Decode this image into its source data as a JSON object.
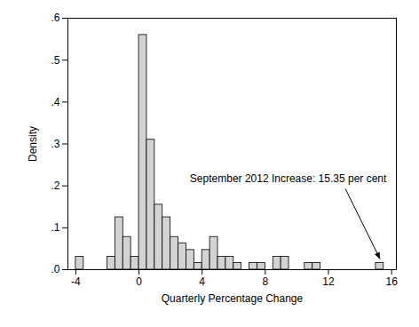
{
  "chart_data": {
    "type": "histogram",
    "x_label": "Quarterly Percentage Change",
    "y_label": "Density",
    "bins": [
      -4,
      -3.5,
      -3,
      -2.5,
      -2,
      -1.5,
      -1,
      -0.5,
      0,
      0.5,
      1,
      1.5,
      2,
      2.5,
      3,
      3.5,
      4,
      4.5,
      5,
      5.5,
      6,
      6.5,
      7,
      7.5,
      8,
      8.5,
      9,
      9.5,
      10,
      10.5,
      11,
      11.5,
      12,
      12.5,
      13,
      13.5,
      14,
      14.5,
      15,
      15.5,
      16
    ],
    "values": [
      0.031,
      0,
      0,
      0,
      0.031,
      0.125,
      0.078,
      0.031,
      0.56,
      0.31,
      0.155,
      0.125,
      0.078,
      0.063,
      0.047,
      0.016,
      0.047,
      0.078,
      0.031,
      0.031,
      0.016,
      0,
      0.016,
      0.016,
      0,
      0.031,
      0.031,
      0,
      0,
      0.016,
      0.016,
      0,
      0,
      0,
      0,
      0,
      0,
      0,
      0.016,
      0
    ],
    "color": "#d3d3d3",
    "xlim": [
      -4.5,
      16.3
    ],
    "xticks": [
      -4,
      0,
      4,
      8,
      12,
      16
    ],
    "ylim": [
      0,
      0.6
    ],
    "yticks": [
      {
        "value": 0,
        "label": ".0"
      },
      {
        "value": 0.1,
        "label": ".1"
      },
      {
        "value": 0.2,
        "label": ".2"
      },
      {
        "value": 0.3,
        "label": ".3"
      },
      {
        "value": 0.4,
        "label": ".4"
      },
      {
        "value": 0.5,
        "label": ".5"
      },
      {
        "value": 0.6,
        "label": ".6"
      }
    ],
    "grid": false,
    "annotation": {
      "text": "September 2012 Increase: 15.35 per cent",
      "x": 15.35,
      "y": 0.016
    }
  }
}
